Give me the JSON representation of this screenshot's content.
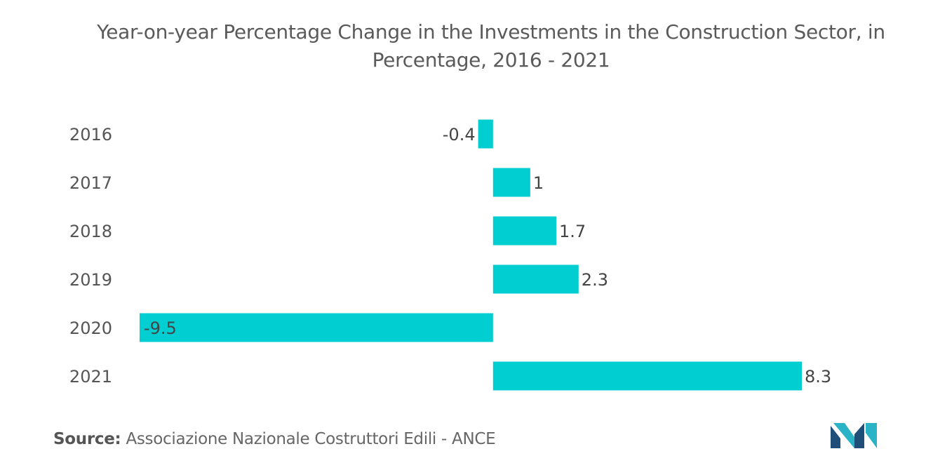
{
  "chart_data": {
    "type": "bar",
    "orientation": "horizontal",
    "title": "Year-on-year Percentage Change in the Investments in the Construction Sector, in Percentage, 2016 - 2021",
    "categories": [
      "2016",
      "2017",
      "2018",
      "2019",
      "2020",
      "2021"
    ],
    "values": [
      -0.4,
      1,
      1.7,
      2.3,
      -9.5,
      8.3
    ],
    "data_labels": [
      "-0.4",
      "1",
      "1.7",
      "2.3",
      "-9.5",
      "8.3"
    ],
    "xlim": [
      -9.5,
      8.3
    ],
    "grid": false,
    "legend": "none",
    "bar_color": "#00CED1"
  },
  "source": {
    "label": "Source:",
    "text": "Associazione Nazionale Costruttori Edili - ANCE"
  },
  "logo": {
    "icon": "mordor-intelligence-logo-icon",
    "colors": [
      "#1f4e79",
      "#2ab3c6"
    ]
  }
}
